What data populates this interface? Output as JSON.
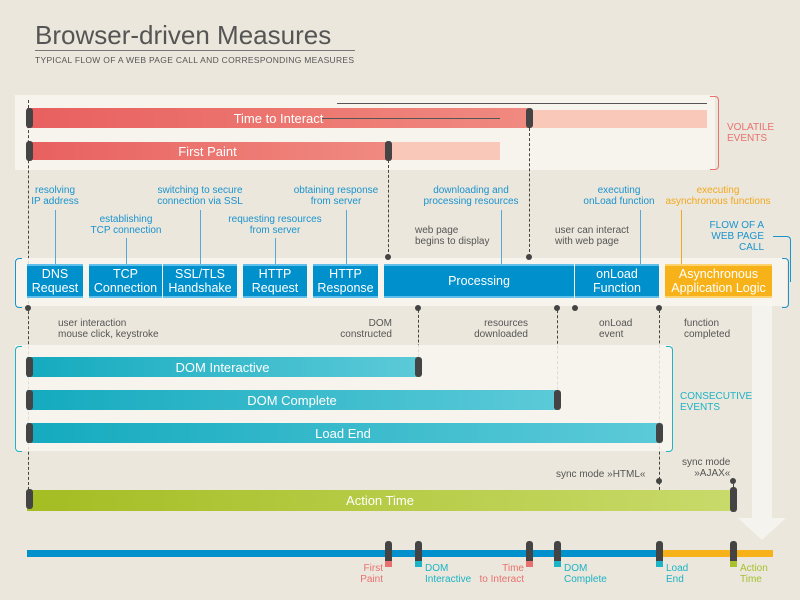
{
  "header": {
    "title": "Browser-driven Measures",
    "subtitle": "TYPICAL FLOW OF A WEB PAGE CALL AND CORRESPONDING MEASURES"
  },
  "volatile": {
    "label1": "VOLATILE",
    "label2": "EVENTS",
    "bars": [
      {
        "label": "Time to Interact"
      },
      {
        "label": "First Paint"
      }
    ]
  },
  "flow": {
    "label1": "FLOW OF A",
    "label2": "WEB PAGE CALL",
    "steps": [
      {
        "l1": "DNS",
        "l2": "Request"
      },
      {
        "l1": "TCP",
        "l2": "Connection"
      },
      {
        "l1": "SSL/TLS",
        "l2": "Handshake"
      },
      {
        "l1": "HTTP",
        "l2": "Request"
      },
      {
        "l1": "HTTP",
        "l2": "Response"
      },
      {
        "l1": "Processing",
        "l2": ""
      },
      {
        "l1": "onLoad",
        "l2": "Function"
      },
      {
        "l1": "Asynchronous",
        "l2": "Application Logic"
      }
    ],
    "above": [
      {
        "l1": "resolving",
        "l2": "IP address"
      },
      {
        "l1": "establishing",
        "l2": "TCP connection"
      },
      {
        "l1": "switching to secure",
        "l2": "connection via SSL"
      },
      {
        "l1": "requesting resources",
        "l2": "from server"
      },
      {
        "l1": "obtaining response",
        "l2": "from server"
      },
      {
        "l1": "downloading and",
        "l2": "processing resources"
      },
      {
        "l1": "executing",
        "l2": "onLoad function"
      },
      {
        "l1": "executing",
        "l2": "asynchronous functions"
      }
    ],
    "events_above": [
      {
        "l1": "web page",
        "l2": "begins to display"
      },
      {
        "l1": "user can interact",
        "l2": "with web page"
      }
    ],
    "events_below": [
      {
        "l1": "user interaction",
        "l2": "mouse click, keystroke"
      },
      {
        "l1": "DOM",
        "l2": "constructed"
      },
      {
        "l1": "resources",
        "l2": "downloaded"
      },
      {
        "l1": "onLoad",
        "l2": "event"
      },
      {
        "l1": "function",
        "l2": "completed"
      }
    ]
  },
  "consecutive": {
    "label1": "CONSECUTIVE",
    "label2": "EVENTS",
    "bars": [
      {
        "label": "DOM Interactive"
      },
      {
        "label": "DOM Complete"
      },
      {
        "label": "Load End"
      }
    ]
  },
  "action": {
    "label": "Action Time",
    "sync_html": "sync mode »HTML«",
    "sync_ajax1": "sync mode",
    "sync_ajax2": "»AJAX«"
  },
  "timeline": [
    {
      "l1": "First",
      "l2": "Paint",
      "color": "#e8716f"
    },
    {
      "l1": "DOM",
      "l2": "Interactive",
      "color": "#1cb3c6"
    },
    {
      "l1": "Time",
      "l2": "to Interact",
      "color": "#e8716f"
    },
    {
      "l1": "DOM",
      "l2": "Complete",
      "color": "#1cb3c6"
    },
    {
      "l1": "Load",
      "l2": "End",
      "color": "#1cb3c6"
    },
    {
      "l1": "Action",
      "l2": "Time",
      "color": "#a6c02e"
    }
  ],
  "colors": {
    "blue": "#0090cc",
    "orange": "#f7b21a",
    "red": "#e96a6a",
    "teal": "#1bb3c8",
    "green": "#a8c22a"
  }
}
